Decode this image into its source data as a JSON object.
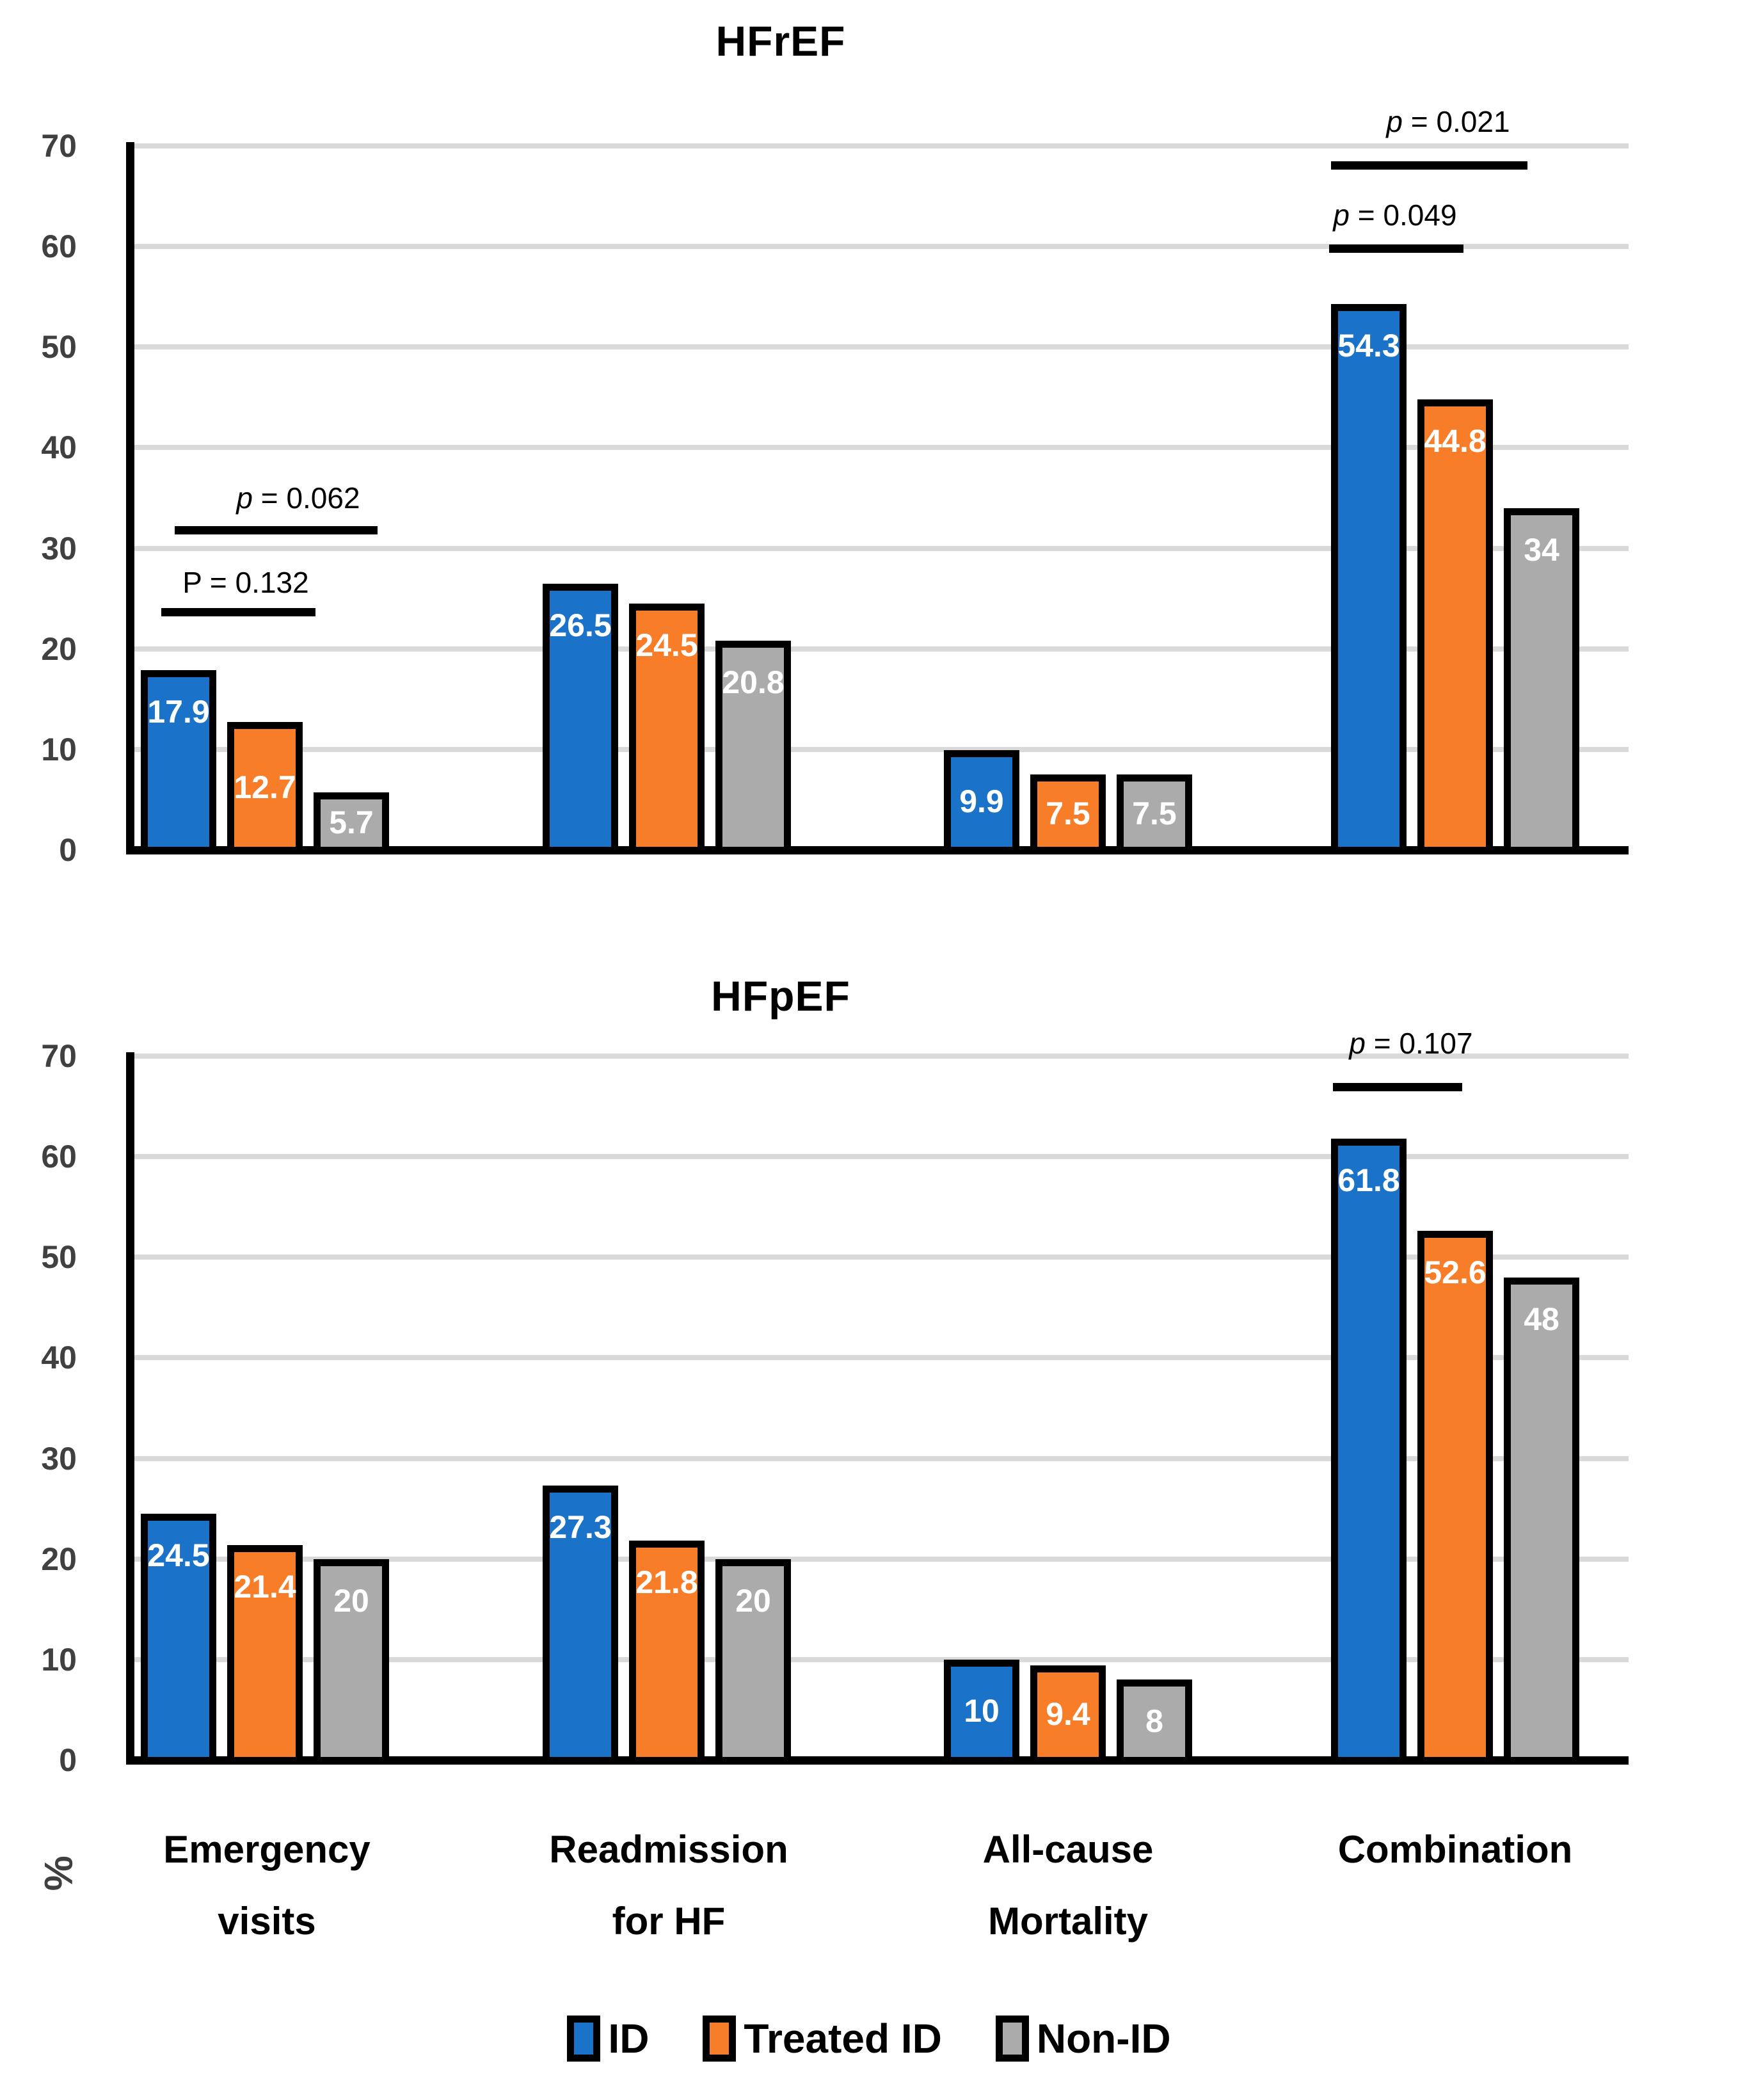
{
  "figure": {
    "y_axis_title": "%",
    "y_ticks": [
      0,
      10,
      20,
      30,
      40,
      50,
      60,
      70
    ],
    "y_max": 70,
    "gridline_color": "#D9D9D9",
    "axis_color": "#000000",
    "tick_label_color": "#404040"
  },
  "category_axis_labels": [
    [
      "Emergency",
      "visits"
    ],
    [
      "Readmission",
      "for HF"
    ],
    [
      "All-cause",
      "Mortality"
    ],
    [
      "Combination"
    ]
  ],
  "legend": {
    "items": [
      {
        "label": "ID",
        "color": "#1A73C8"
      },
      {
        "label": "Treated ID",
        "color": "#F87D28"
      },
      {
        "label": "Non-ID",
        "color": "#ABABAB"
      }
    ]
  },
  "chart_data": [
    {
      "type": "bar",
      "title": "HFrEF",
      "categories": [
        "Emergency visits",
        "Readmission for HF",
        "All-cause Mortality",
        "Combination"
      ],
      "series": [
        {
          "name": "ID",
          "color": "#1A73C8",
          "values": [
            17.9,
            26.5,
            9.9,
            54.3
          ]
        },
        {
          "name": "Treated ID",
          "color": "#F87D28",
          "values": [
            12.7,
            24.5,
            7.5,
            44.8
          ]
        },
        {
          "name": "Non-ID",
          "color": "#ABABAB",
          "values": [
            5.7,
            20.8,
            7.5,
            34
          ]
        }
      ],
      "ylabel": "%",
      "ylim": [
        0,
        70
      ],
      "grid": true,
      "legend_position": "bottom",
      "annotations": [
        {
          "id": "hfref-ev-1",
          "label": "p = 0.062",
          "category": "Emergency visits",
          "compares": [
            "ID",
            "Non-ID"
          ]
        },
        {
          "id": "hfref-ev-2",
          "label": "P = 0.132",
          "category": "Emergency visits",
          "compares": [
            "ID",
            "Treated ID"
          ]
        },
        {
          "id": "hfref-comb-1",
          "label": "p = 0.021",
          "category": "Combination",
          "compares": [
            "ID",
            "Non-ID"
          ]
        },
        {
          "id": "hfref-comb-2",
          "label": "p = 0.049",
          "category": "Combination",
          "compares": [
            "ID",
            "Treated ID"
          ]
        }
      ]
    },
    {
      "type": "bar",
      "title": "HFpEF",
      "categories": [
        "Emergency visits",
        "Readmission for HF",
        "All-cause Mortality",
        "Combination"
      ],
      "series": [
        {
          "name": "ID",
          "color": "#1A73C8",
          "values": [
            24.5,
            27.3,
            10,
            61.8
          ]
        },
        {
          "name": "Treated ID",
          "color": "#F87D28",
          "values": [
            21.4,
            21.8,
            9.4,
            52.6
          ]
        },
        {
          "name": "Non-ID",
          "color": "#ABABAB",
          "values": [
            20,
            20,
            8,
            48
          ]
        }
      ],
      "ylabel": "%",
      "ylim": [
        0,
        70
      ],
      "grid": true,
      "legend_position": "bottom",
      "annotations": [
        {
          "id": "hfpef-comb-1",
          "label": "p = 0.107",
          "category": "Combination",
          "compares": [
            "ID",
            "Treated ID"
          ]
        }
      ]
    }
  ]
}
